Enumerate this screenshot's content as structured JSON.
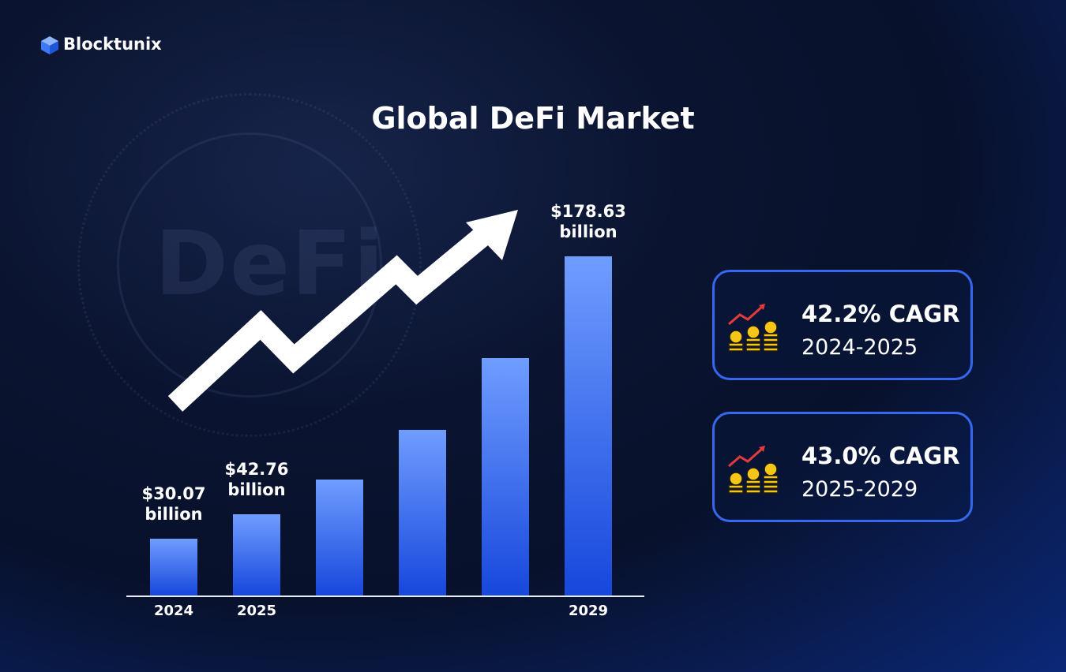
{
  "brand": "Blocktunix",
  "watermark": "DeFi",
  "chart_data": {
    "type": "bar",
    "title": "Global DeFi Market",
    "categories": [
      "2024",
      "2025",
      null,
      null,
      null,
      "2029"
    ],
    "values": [
      30.07,
      42.76,
      61.15,
      87.44,
      125.04,
      178.63
    ],
    "value_labels": [
      "$30.07 billion",
      "$42.76 billion",
      null,
      null,
      null,
      "$178.63 billion"
    ],
    "color_top": "#6f9dff",
    "color_bottom": "#1747dc"
  },
  "cards": [
    {
      "headline": "42.2% CAGR",
      "period": "2024-2025"
    },
    {
      "headline": "43.0% CAGR",
      "period": "2025-2029"
    }
  ]
}
